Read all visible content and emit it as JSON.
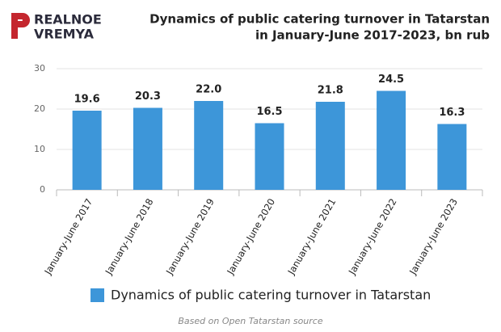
{
  "logo": [
    "REALNOE",
    "VREMYA"
  ],
  "chart_data": {
    "type": "bar",
    "title": [
      "Dynamics of public catering turnover in Tatarstan",
      "in January-June 2017-2023, bn rub"
    ],
    "categories": [
      "January-June 2017",
      "January-June 2018",
      "January-June 2019",
      "January-June 2020",
      "January-June 2021",
      "January-June 2022",
      "January-June 2023"
    ],
    "series": [
      {
        "name": "Dynamics of public catering turnover in Tatarstan",
        "color": "#3d96d9",
        "values": [
          19.6,
          20.3,
          22.0,
          16.5,
          21.8,
          24.5,
          16.3
        ],
        "value_labels": [
          "19.6",
          "20.3",
          "22.0",
          "16.5",
          "21.8",
          "24.5",
          "16.3"
        ]
      }
    ],
    "ylim": [
      0,
      30
    ],
    "yticks": [
      0,
      10,
      20,
      30
    ],
    "grid": true,
    "source": "Based on Open Tatarstan source"
  }
}
